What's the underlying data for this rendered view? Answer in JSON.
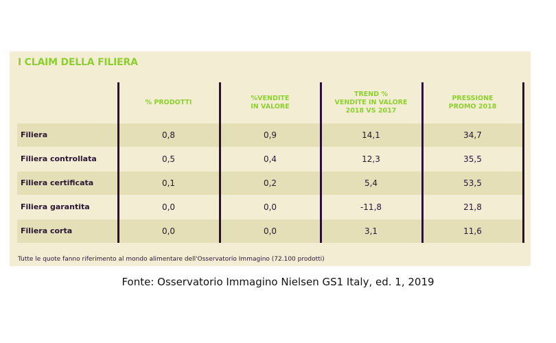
{
  "title": "I CLAIM DELLA FILIERA",
  "headers": [
    "% PRODOTTI",
    "%VENDITE\nIN VALORE",
    "TREND %\nVENDITE IN VALORE\n2018 VS 2017",
    "PRESSIONE\nPROMO 2018"
  ],
  "rows": [
    {
      "label": "Filiera",
      "values": [
        "0,8",
        "0,9",
        "14,1",
        "34,7"
      ]
    },
    {
      "label": "Filiera controllata",
      "values": [
        "0,5",
        "0,4",
        "12,3",
        "35,5"
      ]
    },
    {
      "label": "Filiera certificata",
      "values": [
        "0,1",
        "0,2",
        "5,4",
        "53,5"
      ]
    },
    {
      "label": "Filiera garantita",
      "values": [
        "0,0",
        "0,0",
        "-11,8",
        "21,8"
      ]
    },
    {
      "label": "Filiera corta",
      "values": [
        "0,0",
        "0,0",
        "3,1",
        "11,6"
      ]
    }
  ],
  "note": "Tutte le quote fanno riferimento al mondo alimentare dell'Osservatorio Immagino (72.100 prodotti)",
  "source": "Fonte: Osservatorio Immagino Nielsen GS1 Italy, ed. 1, 2019"
}
